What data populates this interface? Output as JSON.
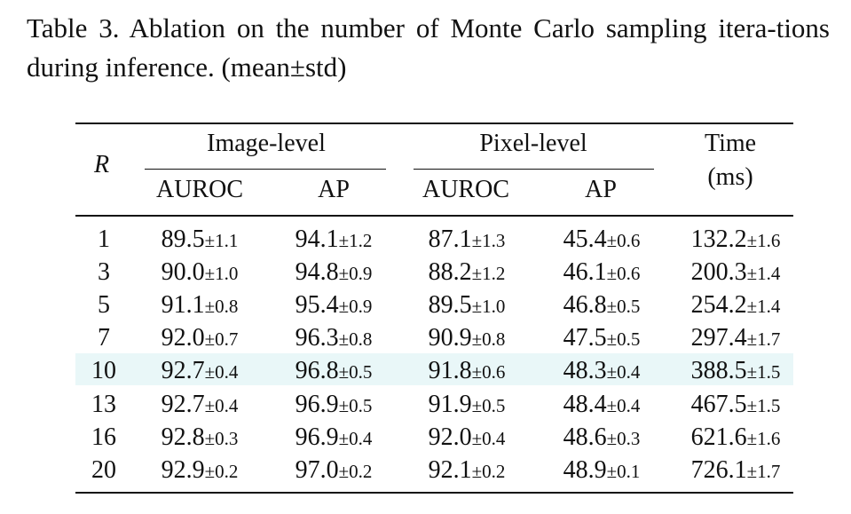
{
  "caption": "Table 3.  Ablation on the number of Monte Carlo sampling itera-tions during inference. (mean±std)",
  "table": {
    "header": {
      "r_label": "R",
      "group_image": "Image-level",
      "group_pixel": "Pixel-level",
      "time_line1": "Time",
      "time_line2": "(ms)",
      "sub_auroc_1": "AUROC",
      "sub_ap_1": "AP",
      "sub_auroc_2": "AUROC",
      "sub_ap_2": "AP"
    },
    "highlight_row": 4,
    "highlight_color": "#e9f7f8",
    "rows": [
      {
        "r": "1",
        "img_auroc": "89.5",
        "img_auroc_std": "±1.1",
        "img_ap": "94.1",
        "img_ap_std": "±1.2",
        "px_auroc": "87.1",
        "px_auroc_std": "±1.3",
        "px_ap": "45.4",
        "px_ap_std": "±0.6",
        "time": "132.2",
        "time_std": "±1.6"
      },
      {
        "r": "3",
        "img_auroc": "90.0",
        "img_auroc_std": "±1.0",
        "img_ap": "94.8",
        "img_ap_std": "±0.9",
        "px_auroc": "88.2",
        "px_auroc_std": "±1.2",
        "px_ap": "46.1",
        "px_ap_std": "±0.6",
        "time": "200.3",
        "time_std": "±1.4"
      },
      {
        "r": "5",
        "img_auroc": "91.1",
        "img_auroc_std": "±0.8",
        "img_ap": "95.4",
        "img_ap_std": "±0.9",
        "px_auroc": "89.5",
        "px_auroc_std": "±1.0",
        "px_ap": "46.8",
        "px_ap_std": "±0.5",
        "time": "254.2",
        "time_std": "±1.4"
      },
      {
        "r": "7",
        "img_auroc": "92.0",
        "img_auroc_std": "±0.7",
        "img_ap": "96.3",
        "img_ap_std": "±0.8",
        "px_auroc": "90.9",
        "px_auroc_std": "±0.8",
        "px_ap": "47.5",
        "px_ap_std": "±0.5",
        "time": "297.4",
        "time_std": "±1.7"
      },
      {
        "r": "10",
        "img_auroc": "92.7",
        "img_auroc_std": "±0.4",
        "img_ap": "96.8",
        "img_ap_std": "±0.5",
        "px_auroc": "91.8",
        "px_auroc_std": "±0.6",
        "px_ap": "48.3",
        "px_ap_std": "±0.4",
        "time": "388.5",
        "time_std": "±1.5"
      },
      {
        "r": "13",
        "img_auroc": "92.7",
        "img_auroc_std": "±0.4",
        "img_ap": "96.9",
        "img_ap_std": "±0.5",
        "px_auroc": "91.9",
        "px_auroc_std": "±0.5",
        "px_ap": "48.4",
        "px_ap_std": "±0.4",
        "time": "467.5",
        "time_std": "±1.5"
      },
      {
        "r": "16",
        "img_auroc": "92.8",
        "img_auroc_std": "±0.3",
        "img_ap": "96.9",
        "img_ap_std": "±0.4",
        "px_auroc": "92.0",
        "px_auroc_std": "±0.4",
        "px_ap": "48.6",
        "px_ap_std": "±0.3",
        "time": "621.6",
        "time_std": "±1.6"
      },
      {
        "r": "20",
        "img_auroc": "92.9",
        "img_auroc_std": "±0.2",
        "img_ap": "97.0",
        "img_ap_std": "±0.2",
        "px_auroc": "92.1",
        "px_auroc_std": "±0.2",
        "px_ap": "48.9",
        "px_ap_std": "±0.1",
        "time": "726.1",
        "time_std": "±1.7"
      }
    ]
  }
}
